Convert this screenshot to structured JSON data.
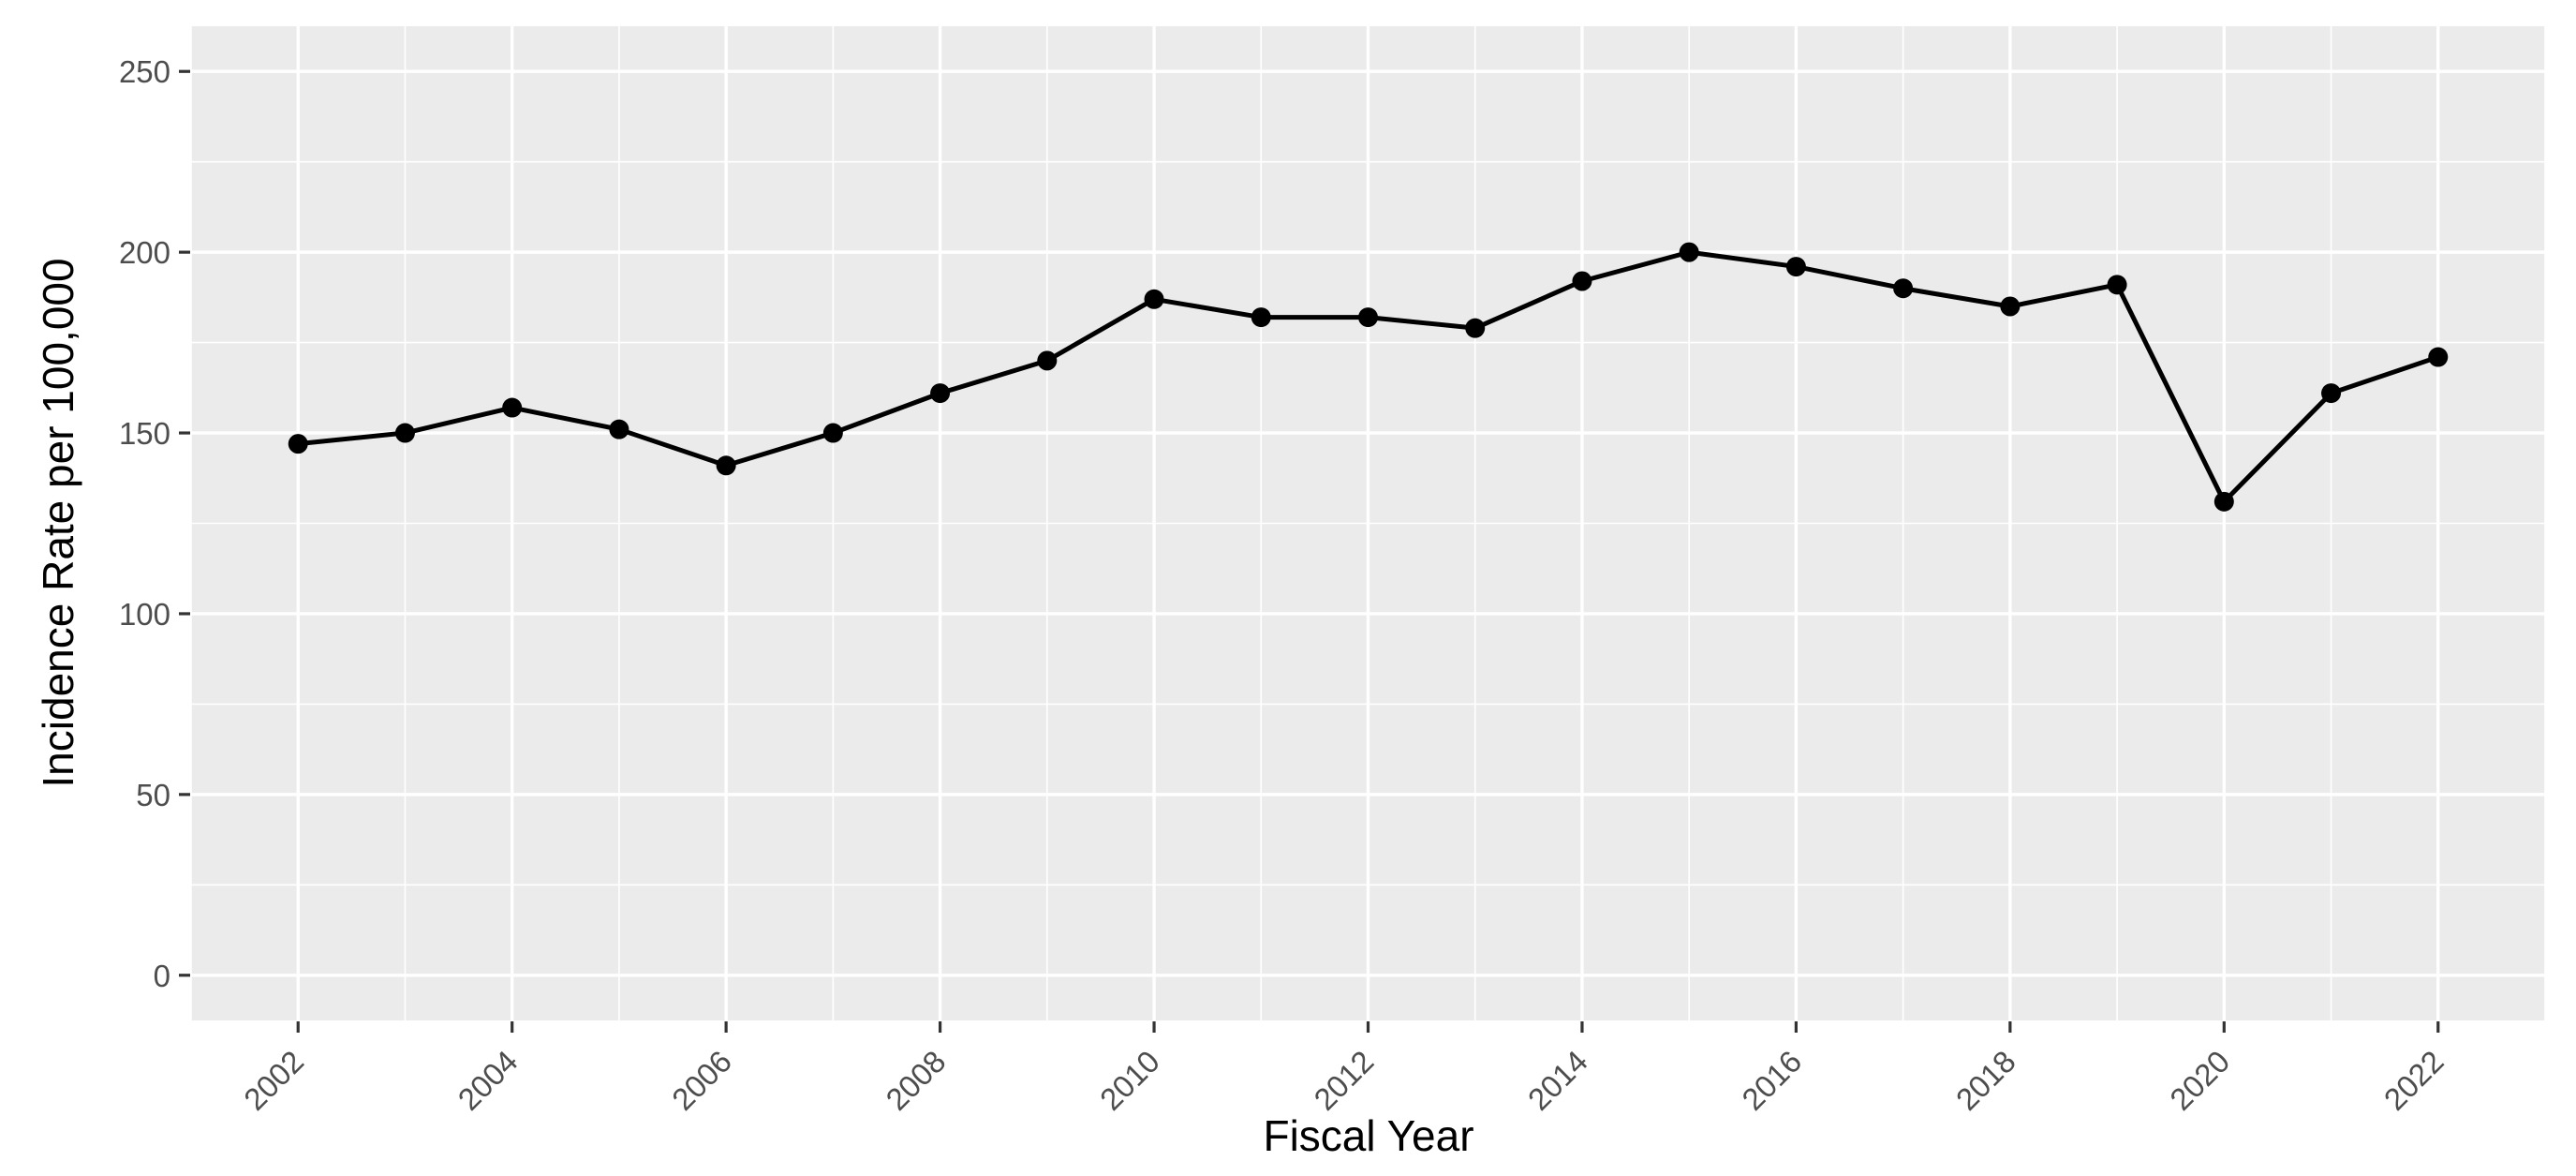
{
  "chart_data": {
    "type": "line",
    "title": "",
    "xlabel": "Fiscal Year",
    "ylabel": "Incidence Rate per 100,000",
    "x": [
      2002,
      2003,
      2004,
      2005,
      2006,
      2007,
      2008,
      2009,
      2010,
      2011,
      2012,
      2013,
      2014,
      2015,
      2016,
      2017,
      2018,
      2019,
      2020,
      2021,
      2022
    ],
    "values": [
      147,
      150,
      157,
      151,
      141,
      150,
      161,
      170,
      187,
      182,
      182,
      179,
      192,
      200,
      196,
      190,
      185,
      191,
      131,
      161,
      171
    ],
    "series_name": "Incidence rate",
    "xlim": [
      2001,
      2023
    ],
    "ylim": [
      -12.5,
      262.5
    ],
    "x_ticks": [
      2002,
      2004,
      2006,
      2008,
      2010,
      2012,
      2014,
      2016,
      2018,
      2020,
      2022
    ],
    "x_minor_ticks": [
      2001,
      2003,
      2005,
      2007,
      2009,
      2011,
      2013,
      2015,
      2017,
      2019,
      2021,
      2023
    ],
    "y_ticks": [
      0,
      50,
      100,
      150,
      200,
      250
    ],
    "y_minor_ticks": [
      25,
      75,
      125,
      175,
      225
    ],
    "x_tick_label_angle_deg": -45,
    "grid": "major and minor, shown",
    "legend": "none",
    "style": {
      "panel_bg": "#EBEBEB",
      "outer_bg": "#FFFFFF",
      "grid_color": "#FFFFFF",
      "line_color": "#000000",
      "point_color": "#000000",
      "tick_mark_color": "#333333",
      "tick_label_color": "#4D4D4D",
      "axis_title_color": "#000000"
    }
  }
}
